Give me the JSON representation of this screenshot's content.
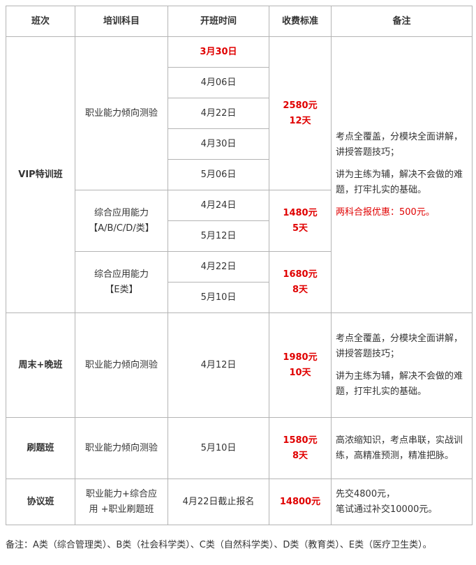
{
  "headers": [
    "班次",
    "培训科目",
    "开班时间",
    "收费标准",
    "备注"
  ],
  "vip": {
    "name": "VIP特训班",
    "g1": {
      "subject": "职业能力倾向测验",
      "dates": [
        "3月30日",
        "4月06日",
        "4月22日",
        "4月30日",
        "5月06日"
      ],
      "price": "2580元",
      "days": "12天"
    },
    "g2": {
      "subject1": "综合应用能力",
      "subject2": "【A/B/C/D/类】",
      "dates": [
        "4月24日",
        "5月12日"
      ],
      "price": "1480元",
      "days": "5天"
    },
    "g3": {
      "subject1": "综合应用能力",
      "subject2": "【E类】",
      "dates": [
        "4月22日",
        "5月10日"
      ],
      "price": "1680元",
      "days": "8天"
    },
    "note": [
      "考点全覆盖，分模块全面讲解，讲授答题技巧；",
      "讲为主练为辅，解决不会做的难题，打牢扎实的基础。",
      "两科合报优惠：500元。"
    ]
  },
  "weekend": {
    "name": "周末+晚班",
    "subject": "职业能力倾向测验",
    "date": "4月12日",
    "price": "1980元",
    "days": "10天",
    "note": [
      "考点全覆盖，分模块全面讲解，讲授答题技巧；",
      "讲为主练为辅，解决不会做的难题，打牢扎实的基础。"
    ]
  },
  "drill": {
    "name": "刷题班",
    "subject": "职业能力倾向测验",
    "date": "5月10日",
    "price": "1580元",
    "days": "8天",
    "note": "高浓缩知识，考点串联，实战训练，高精准预测，精准把脉。"
  },
  "agreement": {
    "name": "协议班",
    "subject1": "职业能力+综合应",
    "subject2": "用 +职业刷题班",
    "date": "4月22日截止报名",
    "price": "14800元",
    "note1": "先交4800元，",
    "note2": "笔试通过补交10000元。"
  },
  "footnote": "备注：A类（综合管理类）、B类（社会科学类）、C类（自然科学类）、D类（教育类）、E类（医疗卫生类）。"
}
